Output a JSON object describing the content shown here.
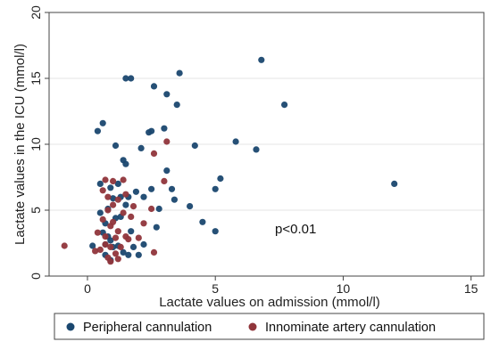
{
  "chart_data": {
    "type": "scatter",
    "xlabel": "Lactate values on admission (mmol/l)",
    "ylabel": "Lactate values in the ICU (mmol/l)",
    "xlim": [
      -1.5,
      15.5
    ],
    "ylim": [
      0,
      20
    ],
    "xticks": [
      0,
      5,
      10,
      15
    ],
    "yticks": [
      0,
      5,
      10,
      15,
      20
    ],
    "grid": "horizontal",
    "legend_position": "bottom",
    "annotation": "p<0.01",
    "series": [
      {
        "name": "Peripheral cannulation",
        "color": "#1a476f",
        "points": [
          [
            0.2,
            2.3
          ],
          [
            0.4,
            11.0
          ],
          [
            0.5,
            4.8
          ],
          [
            0.5,
            7.0
          ],
          [
            0.6,
            11.6
          ],
          [
            0.6,
            3.3
          ],
          [
            0.7,
            1.6
          ],
          [
            0.7,
            2.4
          ],
          [
            0.7,
            4.0
          ],
          [
            0.8,
            5.1
          ],
          [
            0.8,
            3.0
          ],
          [
            0.9,
            6.7
          ],
          [
            0.9,
            2.7
          ],
          [
            0.9,
            1.2
          ],
          [
            1.0,
            5.9
          ],
          [
            1.0,
            2.2
          ],
          [
            1.1,
            9.9
          ],
          [
            1.1,
            4.4
          ],
          [
            1.2,
            7.0
          ],
          [
            1.2,
            2.3
          ],
          [
            1.3,
            6.0
          ],
          [
            1.3,
            4.5
          ],
          [
            1.4,
            8.8
          ],
          [
            1.4,
            1.8
          ],
          [
            1.5,
            15.0
          ],
          [
            1.5,
            8.5
          ],
          [
            1.5,
            5.4
          ],
          [
            1.6,
            6.0
          ],
          [
            1.6,
            1.6
          ],
          [
            1.7,
            15.0
          ],
          [
            1.7,
            3.4
          ],
          [
            1.8,
            2.2
          ],
          [
            1.9,
            6.4
          ],
          [
            2.0,
            1.6
          ],
          [
            2.1,
            9.7
          ],
          [
            2.2,
            6.0
          ],
          [
            2.2,
            2.4
          ],
          [
            2.4,
            10.9
          ],
          [
            2.5,
            11.0
          ],
          [
            2.5,
            6.6
          ],
          [
            2.6,
            14.4
          ],
          [
            2.7,
            3.7
          ],
          [
            2.8,
            5.1
          ],
          [
            3.0,
            11.2
          ],
          [
            3.1,
            13.8
          ],
          [
            3.1,
            8.0
          ],
          [
            3.3,
            6.6
          ],
          [
            3.4,
            5.8
          ],
          [
            3.5,
            13.0
          ],
          [
            3.6,
            15.4
          ],
          [
            4.0,
            5.3
          ],
          [
            4.2,
            9.9
          ],
          [
            4.5,
            4.1
          ],
          [
            5.0,
            6.6
          ],
          [
            5.0,
            3.4
          ],
          [
            5.2,
            7.4
          ],
          [
            5.8,
            10.2
          ],
          [
            6.6,
            9.6
          ],
          [
            6.8,
            16.4
          ],
          [
            7.7,
            13.0
          ],
          [
            12.0,
            7.0
          ]
        ]
      },
      {
        "name": "Innominate artery cannulation",
        "color": "#90353b",
        "points": [
          [
            -0.9,
            2.3
          ],
          [
            0.3,
            1.9
          ],
          [
            0.4,
            3.3
          ],
          [
            0.5,
            2.0
          ],
          [
            0.6,
            4.3
          ],
          [
            0.6,
            6.5
          ],
          [
            0.7,
            7.3
          ],
          [
            0.7,
            3.0
          ],
          [
            0.8,
            1.4
          ],
          [
            0.8,
            5.0
          ],
          [
            0.8,
            6.0
          ],
          [
            0.9,
            2.2
          ],
          [
            0.9,
            3.8
          ],
          [
            0.9,
            1.1
          ],
          [
            1.0,
            7.2
          ],
          [
            1.0,
            5.4
          ],
          [
            1.0,
            4.1
          ],
          [
            1.1,
            2.9
          ],
          [
            1.1,
            1.7
          ],
          [
            1.2,
            3.4
          ],
          [
            1.2,
            5.8
          ],
          [
            1.3,
            2.2
          ],
          [
            1.4,
            7.3
          ],
          [
            1.4,
            4.8
          ],
          [
            1.5,
            6.2
          ],
          [
            1.5,
            3.0
          ],
          [
            1.6,
            2.8
          ],
          [
            1.7,
            4.5
          ],
          [
            1.8,
            5.3
          ],
          [
            2.0,
            2.9
          ],
          [
            2.2,
            4.0
          ],
          [
            2.5,
            5.1
          ],
          [
            2.6,
            9.3
          ],
          [
            2.6,
            1.8
          ],
          [
            3.0,
            7.2
          ],
          [
            3.1,
            10.2
          ],
          [
            0.7,
            2.4
          ],
          [
            1.2,
            1.3
          ]
        ]
      }
    ]
  }
}
